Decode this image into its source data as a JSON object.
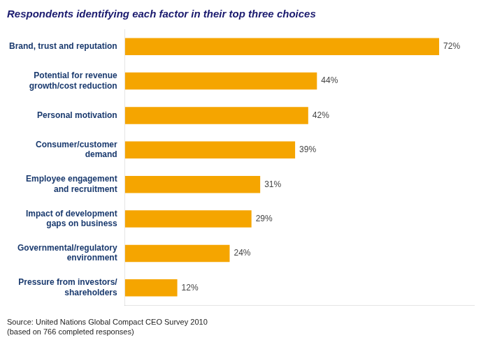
{
  "chart_data": {
    "type": "bar",
    "orientation": "horizontal",
    "title": "Respondents identifying each factor in their top three choices",
    "categories": [
      "Brand, trust and reputation",
      "Potential for revenue\ngrowth/cost reduction",
      "Personal motivation",
      "Consumer/customer\ndemand",
      "Employee engagement\nand recruitment",
      "Impact of development\ngaps on business",
      "Governmental/regulatory\nenvironment",
      "Pressure from investors/\nshareholders"
    ],
    "values": [
      72,
      44,
      42,
      39,
      31,
      29,
      24,
      12
    ],
    "value_labels": [
      "72%",
      "44%",
      "42%",
      "39%",
      "31%",
      "29%",
      "24%",
      "12%"
    ],
    "data_labels": true,
    "color": "#F5A500",
    "xlim": [
      0,
      80
    ],
    "grid": false,
    "tick_labels": "y",
    "annotations": [
      "Source: United Nations Global Compact CEO Survey 2010\n(based on 766 completed responses)"
    ]
  }
}
